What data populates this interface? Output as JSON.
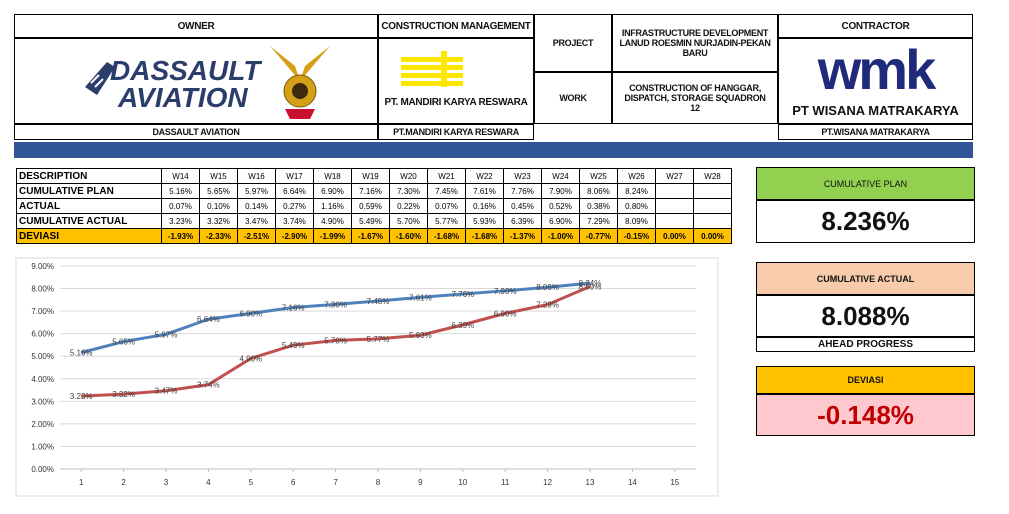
{
  "header": {
    "owner_label": "OWNER",
    "owner_logo_line1": "DASSAULT",
    "owner_logo_line2": "AVIATION",
    "owner_name": "DASSAULT AVIATION",
    "cm_label": "CONSTRUCTION MANAGEMENT",
    "cm_logo_text": "PT. MANDIRI KARYA RESWARA",
    "cm_name": "PT.MANDIRI KARYA RESWARA",
    "project_label": "PROJECT",
    "project": "INFRASTRUCTURE DEVELOPMENT LANUD ROESMIN NURJADIN-PEKAN BARU",
    "work_label": "WORK",
    "work": "CONSTRUCTION OF HANGGAR, DISPATCH, STORAGE SQUADRON 12",
    "contractor_label": "CONTRACTOR",
    "contractor_logo": "wmk",
    "contractor_logo_name": "PT WISANA MATRAKARYA",
    "contractor_name": "PT.WISANA MATRAKARYA"
  },
  "table": {
    "columns": [
      "DESCRIPTION",
      "W14",
      "W15",
      "W16",
      "W17",
      "W18",
      "W19",
      "W20",
      "W21",
      "W22",
      "W23",
      "W24",
      "W25",
      "W26",
      "W27",
      "W28"
    ],
    "rows": [
      {
        "label": "CUMULATIVE PLAN",
        "cells": [
          "5.16%",
          "5.65%",
          "5.97%",
          "6.64%",
          "6.90%",
          "7.16%",
          "7.30%",
          "7.45%",
          "7.61%",
          "7.76%",
          "7.90%",
          "8.06%",
          "8.24%"
        ]
      },
      {
        "label": "ACTUAL",
        "cells": [
          "0.07%",
          "0.10%",
          "0.14%",
          "0.27%",
          "1.16%",
          "0.59%",
          "0.22%",
          "0.07%",
          "0.16%",
          "0.45%",
          "0.52%",
          "0.38%",
          "0.80%"
        ]
      },
      {
        "label": "CUMULATIVE ACTUAL",
        "cells": [
          "3.23%",
          "3.32%",
          "3.47%",
          "3.74%",
          "4.90%",
          "5.49%",
          "5.70%",
          "5.77%",
          "5.93%",
          "6.39%",
          "6.90%",
          "7.29%",
          "8.09%"
        ]
      },
      {
        "label": "DEVIASI",
        "cells": [
          "-1.93%",
          "-2.33%",
          "-2.51%",
          "-2.90%",
          "-1.99%",
          "-1.67%",
          "-1.60%",
          "-1.68%",
          "-1.68%",
          "-1.37%",
          "-1.00%",
          "-0.77%",
          "-0.15%",
          "0.00%",
          "0.00%"
        ]
      }
    ]
  },
  "chart_data": {
    "type": "line",
    "x": [
      1,
      2,
      3,
      4,
      5,
      6,
      7,
      8,
      9,
      10,
      11,
      12,
      13
    ],
    "series": [
      {
        "color": "#4f81bd",
        "values": [
          5.16,
          5.65,
          5.97,
          6.64,
          6.9,
          7.16,
          7.3,
          7.45,
          7.61,
          7.76,
          7.9,
          8.06,
          8.24
        ],
        "value_labels": [
          "5.16%",
          "5.65%",
          "5.97%",
          "6.64%",
          "6.90%",
          "7.16%",
          "7.30%",
          "7.45%",
          "7.61%",
          "7.76%",
          "7.90%",
          "8.06%",
          "8.24%"
        ]
      },
      {
        "color": "#c0504d",
        "values": [
          3.23,
          3.32,
          3.47,
          3.74,
          4.9,
          5.49,
          5.7,
          5.77,
          5.93,
          6.39,
          6.9,
          7.29,
          8.09
        ],
        "value_labels": [
          "3.23%",
          "3.32%",
          "3.47%",
          "3.74%",
          "4.90%",
          "5.49%",
          "5.70%",
          "5.77%",
          "5.93%",
          "6.39%",
          "6.90%",
          "7.29%",
          "8.09%"
        ]
      }
    ],
    "xlim": [
      0.5,
      15.5
    ],
    "xticks": [
      1,
      2,
      3,
      4,
      5,
      6,
      7,
      8,
      9,
      10,
      11,
      12,
      13,
      14,
      15
    ],
    "ylim": [
      0,
      9
    ],
    "yticks": [
      {
        "value": 0,
        "label": "0.00%"
      },
      {
        "value": 1,
        "label": "1.00%"
      },
      {
        "value": 2,
        "label": "2.00%"
      },
      {
        "value": 3,
        "label": "3.00%"
      },
      {
        "value": 4,
        "label": "4.00%"
      },
      {
        "value": 5,
        "label": "5.00%"
      },
      {
        "value": 6,
        "label": "6.00%"
      },
      {
        "value": 7,
        "label": "7.00%"
      },
      {
        "value": 8,
        "label": "8.00%"
      },
      {
        "value": 9,
        "label": "9.00%"
      }
    ],
    "grid": true
  },
  "kpis": {
    "plan_label": "CUMULATIVE PLAN",
    "plan_value": "8.236%",
    "actual_label": "CUMULATIVE ACTUAL",
    "actual_value": "8.088%",
    "actual_note": "AHEAD PROGRESS",
    "deviasi_label": "DEVIASI",
    "deviasi_value": "-0.148%"
  }
}
